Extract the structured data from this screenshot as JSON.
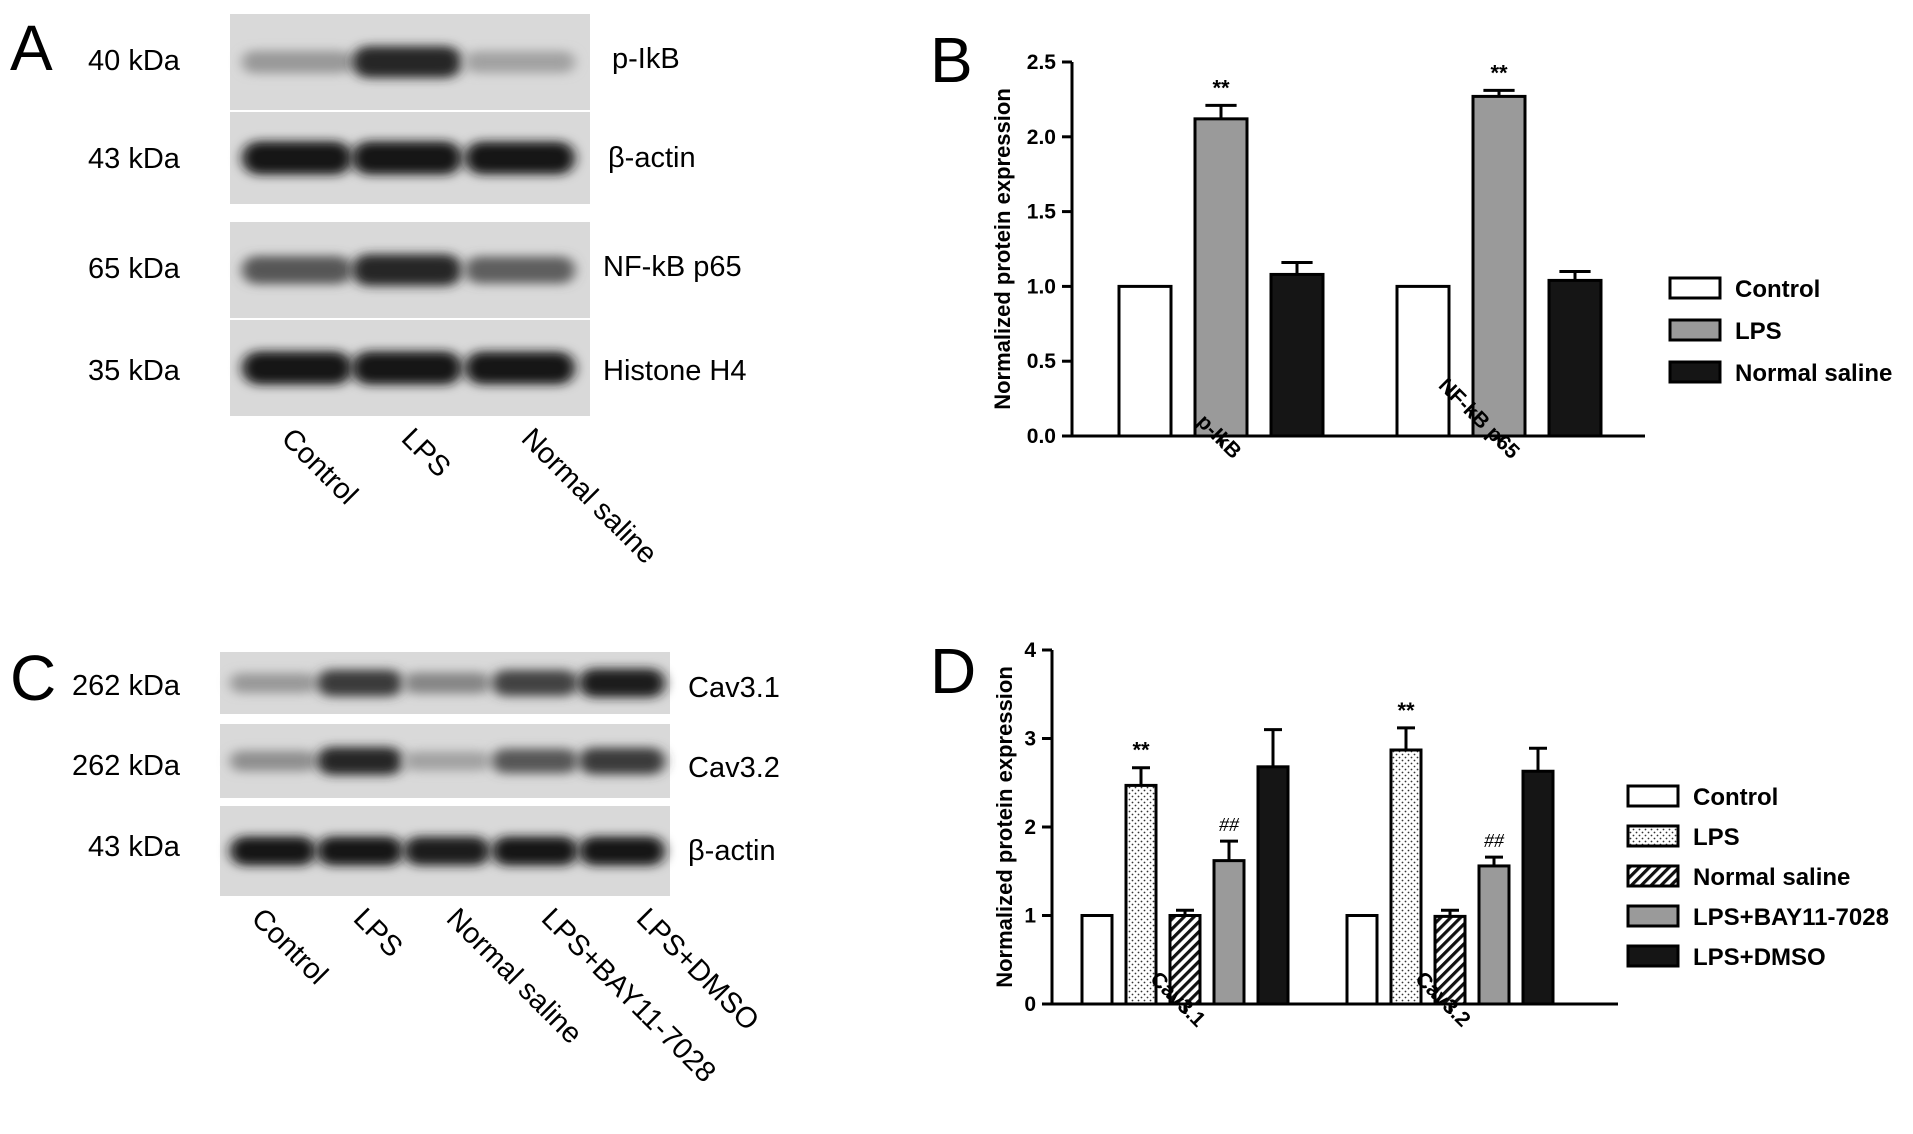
{
  "panels": {
    "A": {
      "letter": "A",
      "blots": [
        {
          "kda": "40 kDa",
          "name": "p-IkB",
          "intensity": [
            0.25,
            0.85,
            0.2
          ]
        },
        {
          "kda": "43 kDa",
          "name": "β-actin",
          "intensity": [
            0.95,
            0.95,
            0.92
          ]
        },
        {
          "kda": "65 kDa",
          "name": "NF-kB p65",
          "intensity": [
            0.6,
            0.85,
            0.55
          ]
        },
        {
          "kda": "35 kDa",
          "name": "Histone H4",
          "intensity": [
            0.95,
            0.95,
            0.92
          ]
        }
      ],
      "lanes": [
        "Control",
        "LPS",
        "Normal saline"
      ]
    },
    "C": {
      "letter": "C",
      "blots": [
        {
          "kda": "262 kDa",
          "name": "Cav3.1",
          "intensity": [
            0.25,
            0.75,
            0.35,
            0.7,
            0.9
          ]
        },
        {
          "kda": "262 kDa",
          "name": "Cav3.2",
          "intensity": [
            0.3,
            0.85,
            0.2,
            0.6,
            0.75
          ]
        },
        {
          "kda": "43 kDa",
          "name": "β-actin",
          "intensity": [
            0.92,
            0.92,
            0.9,
            0.92,
            0.92
          ]
        }
      ],
      "lanes": [
        "Control",
        "LPS",
        "Normal saline",
        "LPS+BAY11-7028",
        "LPS+DMSO"
      ]
    },
    "B": {
      "letter": "B"
    },
    "D": {
      "letter": "D"
    }
  },
  "chart_data": [
    {
      "panel": "B",
      "type": "bar",
      "title": "",
      "xlabel": "",
      "ylabel": "Normalized protein expression",
      "ylim": [
        0,
        2.5
      ],
      "yticks": [
        "0.0",
        "0.5",
        "1.0",
        "1.5",
        "2.0",
        "2.5"
      ],
      "categories": [
        "p-IkB",
        "NF-kB p65"
      ],
      "series": [
        {
          "name": "Control",
          "values": [
            1.0,
            1.0
          ],
          "errors": [
            0,
            0
          ],
          "fill": "#ffffff",
          "pattern": "none",
          "sig": [
            "",
            ""
          ]
        },
        {
          "name": "LPS",
          "values": [
            2.12,
            2.27
          ],
          "errors": [
            0.09,
            0.04
          ],
          "fill": "#9a9a9a",
          "pattern": "none",
          "sig": [
            "**",
            "**"
          ]
        },
        {
          "name": "Normal saline",
          "values": [
            1.08,
            1.04
          ],
          "errors": [
            0.08,
            0.06
          ],
          "fill": "#151515",
          "pattern": "none",
          "sig": [
            "",
            ""
          ]
        }
      ],
      "legend_position": "right"
    },
    {
      "panel": "D",
      "type": "bar",
      "title": "",
      "xlabel": "",
      "ylabel": "Normalized protein expression",
      "ylim": [
        0,
        4
      ],
      "yticks": [
        "0",
        "1",
        "2",
        "3",
        "4"
      ],
      "categories": [
        "Cav3.1",
        "Cav3.2"
      ],
      "series": [
        {
          "name": "Control",
          "values": [
            1.0,
            1.0
          ],
          "errors": [
            0,
            0
          ],
          "fill": "#ffffff",
          "pattern": "none",
          "sig": [
            "",
            ""
          ]
        },
        {
          "name": "LPS",
          "values": [
            2.47,
            2.87
          ],
          "errors": [
            0.2,
            0.25
          ],
          "fill": "#ffffff",
          "pattern": "dots",
          "sig": [
            "**",
            "**"
          ]
        },
        {
          "name": "Normal saline",
          "values": [
            1.0,
            0.99
          ],
          "errors": [
            0.06,
            0.07
          ],
          "fill": "#ffffff",
          "pattern": "hatch",
          "sig": [
            "",
            ""
          ]
        },
        {
          "name": "LPS+BAY11-7028",
          "values": [
            1.62,
            1.56
          ],
          "errors": [
            0.22,
            0.1
          ],
          "fill": "#9a9a9a",
          "pattern": "none",
          "sig": [
            "##",
            "##"
          ]
        },
        {
          "name": "LPS+DMSO",
          "values": [
            2.68,
            2.63
          ],
          "errors": [
            0.42,
            0.26
          ],
          "fill": "#151515",
          "pattern": "none",
          "sig": [
            "",
            ""
          ]
        }
      ],
      "legend_position": "right"
    }
  ]
}
